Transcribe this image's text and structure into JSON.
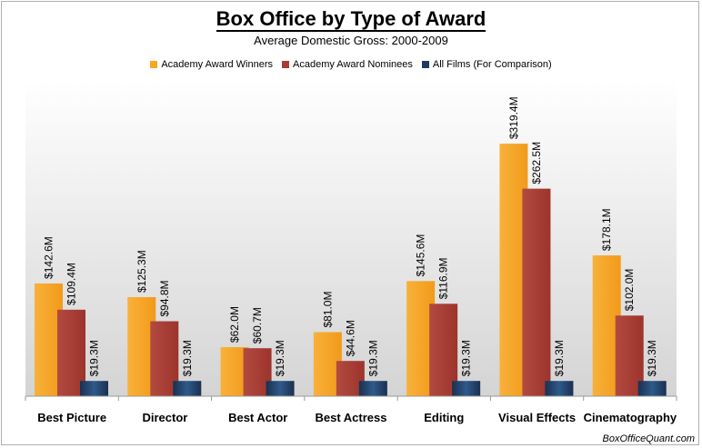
{
  "title": "Box Office by Type of Award",
  "subtitle": "Average Domestic Gross: 2000-2009",
  "credit": "BoxOfficeQuant.com",
  "colors": {
    "winners": "#f5a623",
    "nominees": "#a93b33",
    "all_films": "#1f3a5f"
  },
  "chart_data": {
    "type": "bar",
    "title": "Box Office by Type of Award",
    "subtitle": "Average Domestic Gross: 2000-2009",
    "categories": [
      "Best Picture",
      "Director",
      "Best Actor",
      "Best Actress",
      "Editing",
      "Visual Effects",
      "Cinematography"
    ],
    "series": [
      {
        "name": "Academy Award Winners",
        "values": [
          142.6,
          125.3,
          62.0,
          81.0,
          145.6,
          319.4,
          178.1
        ],
        "labels": [
          "$142.6M",
          "$125.3M",
          "$62.0M",
          "$81.0M",
          "$145.6M",
          "$319.4M",
          "$178.1M"
        ]
      },
      {
        "name": "Academy Award Nominees",
        "values": [
          109.4,
          94.8,
          60.7,
          44.6,
          116.9,
          262.5,
          102.0
        ],
        "labels": [
          "$109.4M",
          "$94.8M",
          "$60.7M",
          "$44.6M",
          "$116.9M",
          "$262.5M",
          "$102.0M"
        ]
      },
      {
        "name": "All Films (For Comparison)",
        "values": [
          19.3,
          19.3,
          19.3,
          19.3,
          19.3,
          19.3,
          19.3
        ],
        "labels": [
          "$19.3M",
          "$19.3M",
          "$19.3M",
          "$19.3M",
          "$19.3M",
          "$19.3M",
          "$19.3M"
        ]
      }
    ],
    "ylim": [
      0,
      360
    ],
    "grid": false,
    "legend_position": "top-center"
  }
}
